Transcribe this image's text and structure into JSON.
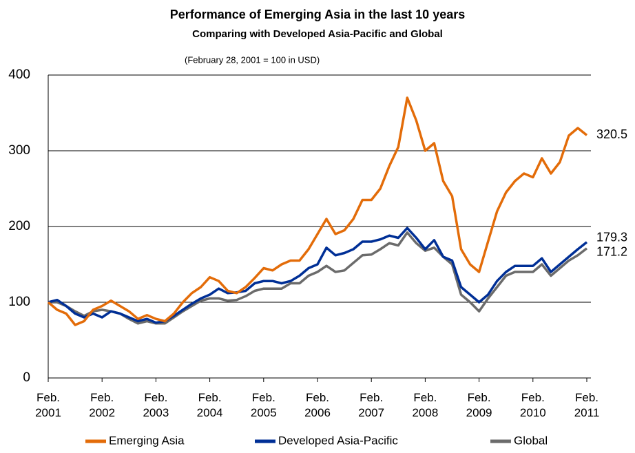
{
  "chart_data": {
    "type": "line",
    "title": "Performance of Emerging Asia in the last 10 years",
    "subtitle": "Comparing with Developed Asia-Pacific and Global",
    "note": "(February 28, 2001 = 100 in USD)",
    "categories": [
      "Feb. 2001",
      null,
      null,
      null,
      null,
      null,
      "Feb. 2002",
      null,
      null,
      null,
      null,
      null,
      "Feb. 2003",
      null,
      null,
      null,
      null,
      null,
      "Feb. 2004",
      null,
      null,
      null,
      null,
      null,
      "Feb. 2005",
      null,
      null,
      null,
      null,
      null,
      "Feb. 2006",
      null,
      null,
      null,
      null,
      null,
      "Feb. 2007",
      null,
      null,
      null,
      null,
      null,
      "Feb. 2008",
      null,
      null,
      null,
      null,
      null,
      "Feb. 2009",
      null,
      null,
      null,
      null,
      null,
      "Feb. 2010",
      null,
      null,
      null,
      null,
      null,
      "Feb. 2011"
    ],
    "series": [
      {
        "name": "Emerging Asia",
        "color": "#e36c09",
        "values": [
          100,
          90,
          85,
          70,
          75,
          90,
          95,
          102,
          95,
          88,
          78,
          83,
          78,
          75,
          85,
          100,
          112,
          120,
          133,
          128,
          115,
          112,
          120,
          132,
          145,
          142,
          150,
          155,
          155,
          170,
          190,
          210,
          190,
          195,
          210,
          235,
          235,
          250,
          280,
          305,
          370,
          340,
          300,
          310,
          260,
          240,
          170,
          150,
          140,
          180,
          220,
          245,
          260,
          270,
          265,
          290,
          270,
          285,
          320,
          330,
          320.5
        ]
      },
      {
        "name": "Developed Asia-Pacific",
        "color": "#002f96",
        "values": [
          100,
          103,
          95,
          85,
          80,
          85,
          80,
          88,
          85,
          80,
          75,
          78,
          73,
          75,
          82,
          90,
          98,
          105,
          110,
          118,
          112,
          113,
          115,
          125,
          128,
          128,
          125,
          128,
          135,
          145,
          150,
          172,
          162,
          165,
          170,
          180,
          180,
          183,
          188,
          185,
          198,
          185,
          170,
          182,
          160,
          155,
          120,
          110,
          100,
          110,
          128,
          140,
          148,
          148,
          148,
          158,
          140,
          150,
          160,
          170,
          179.3
        ]
      },
      {
        "name": "Global",
        "color": "#6b6b6b",
        "values": [
          100,
          100,
          95,
          88,
          82,
          88,
          90,
          88,
          85,
          78,
          72,
          75,
          72,
          72,
          80,
          88,
          95,
          102,
          105,
          105,
          102,
          103,
          108,
          115,
          118,
          118,
          118,
          125,
          125,
          135,
          140,
          148,
          140,
          142,
          152,
          162,
          163,
          170,
          178,
          175,
          192,
          178,
          168,
          172,
          160,
          150,
          110,
          100,
          88,
          105,
          120,
          135,
          140,
          140,
          140,
          150,
          135,
          145,
          155,
          162,
          171.2
        ]
      }
    ],
    "ylim": [
      0,
      400
    ],
    "yticks": [
      0,
      100,
      200,
      300,
      400
    ],
    "grid": true,
    "legend": "bottom"
  }
}
